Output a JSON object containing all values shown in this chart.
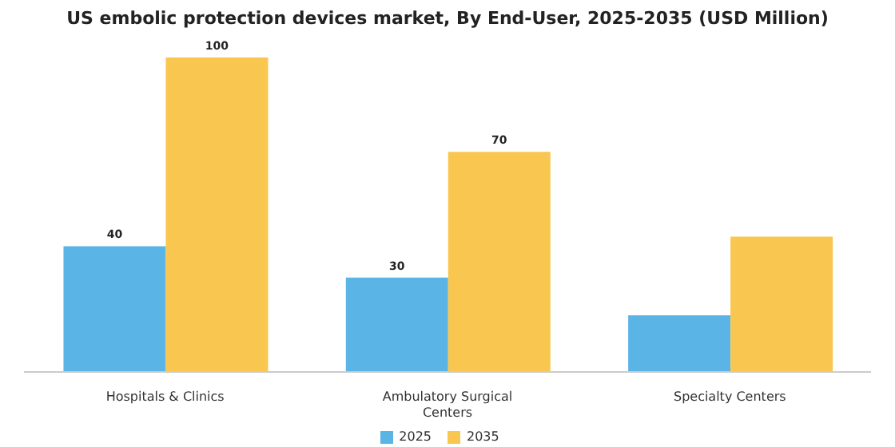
{
  "chart_data": {
    "type": "bar",
    "title": "US embolic protection devices market, By End-User, 2025-2035 (USD Million)",
    "categories": [
      "Hospitals & Clinics",
      "Ambulatory Surgical Centers",
      "Specialty Centers"
    ],
    "series": [
      {
        "name": "2025",
        "color": "#5ab4e5",
        "values": [
          40,
          30,
          18
        ],
        "value_labels": [
          "40",
          "30",
          null
        ]
      },
      {
        "name": "2035",
        "color": "#f9c74f",
        "values": [
          100,
          70,
          43
        ],
        "value_labels": [
          "100",
          "70",
          null
        ]
      }
    ],
    "tick_labels": "x",
    "grid": false,
    "legend": "bottom"
  }
}
